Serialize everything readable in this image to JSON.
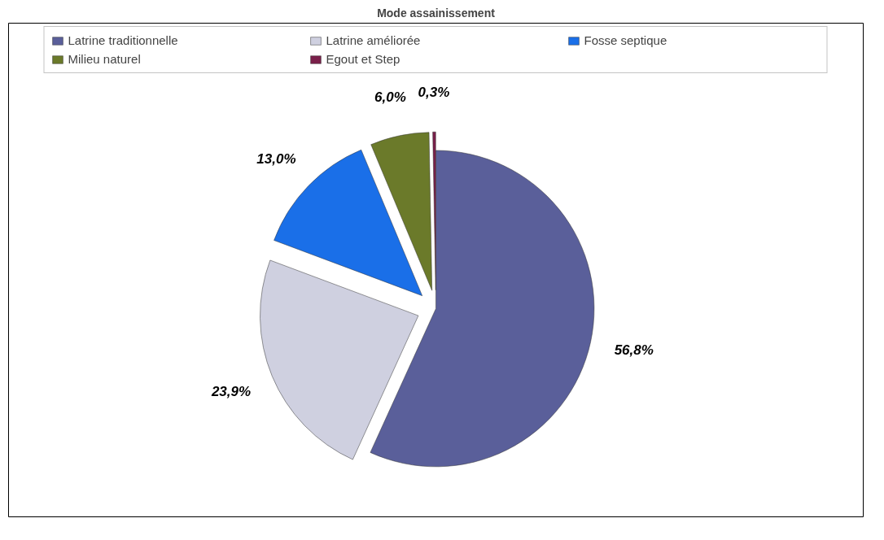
{
  "chart_data": {
    "type": "pie",
    "title": "Mode assainissement",
    "categories": [
      "Latrine traditionnelle",
      "Latrine améliorée",
      "Fosse septique",
      "Milieu naturel",
      "Egout et Step"
    ],
    "values": [
      56.8,
      23.9,
      13.0,
      6.0,
      0.3
    ],
    "colors": [
      "#5a5f9a",
      "#cfd0e0",
      "#1a6fe8",
      "#6b7a2a",
      "#7a1f4a"
    ],
    "value_labels": [
      "56,8%",
      "23,9%",
      "13,0%",
      "6,0%",
      "0,3%"
    ],
    "legend": "top"
  }
}
